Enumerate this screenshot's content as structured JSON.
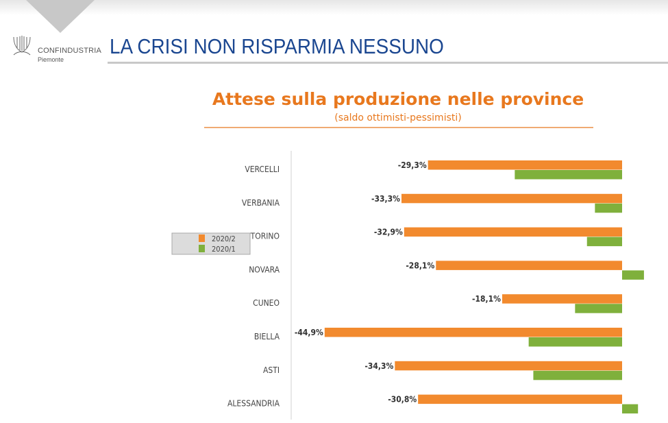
{
  "header": {
    "brand": "CONFINDUSTRIA",
    "brand_sub": "Piemonte",
    "title": "LA CRISI NON RISPARMIA NESSUNO"
  },
  "colors": {
    "series_2020_2": "#f28a2e",
    "series_2020_1": "#7fb03c",
    "title": "#e8781e",
    "header": "#1a4690"
  },
  "chart_data": {
    "type": "bar",
    "orientation": "horizontal",
    "title": "Attese sulla produzione nelle province",
    "subtitle": "(saldo ottimisti-pessimisti)",
    "categories": [
      "VERCELLI",
      "VERBANIA",
      "TORINO",
      "NOVARA",
      "CUNEO",
      "BIELLA",
      "ASTI",
      "ALESSANDRIA"
    ],
    "series": [
      {
        "name": "2020/2",
        "values": [
          -29.3,
          -33.3,
          -32.9,
          -28.1,
          -18.1,
          -44.9,
          -34.3,
          -30.8
        ],
        "labels": [
          "-29,3%",
          "-33,3%",
          "-32,9%",
          "-28,1%",
          "-18,1%",
          "-44,9%",
          "-34,3%",
          "-30,8%"
        ]
      },
      {
        "name": "2020/1",
        "values": [
          -16.2,
          -4.1,
          -5.3,
          3.3,
          -7.1,
          -14.1,
          -13.4,
          2.4
        ]
      }
    ],
    "legend_placement": "left",
    "grid": false
  }
}
